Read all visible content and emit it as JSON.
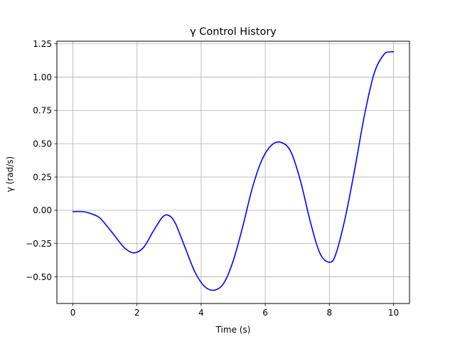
{
  "chart_data": {
    "type": "line",
    "title": "γ Control History",
    "xlabel": "Time (s)",
    "ylabel": "γ (rad/s)",
    "xlim": [
      -0.5,
      10.5
    ],
    "ylim": [
      -0.7,
      1.27
    ],
    "grid": true,
    "x_ticks": [
      0,
      2,
      4,
      6,
      8,
      10
    ],
    "x_tick_labels": [
      "0",
      "2",
      "4",
      "6",
      "8",
      "10"
    ],
    "y_ticks": [
      -0.5,
      -0.25,
      0.0,
      0.25,
      0.5,
      0.75,
      1.0,
      1.25
    ],
    "y_tick_labels": [
      "−0.50",
      "−0.25",
      "0.00",
      "0.25",
      "0.50",
      "0.75",
      "1.00",
      "1.25"
    ],
    "line_color": "#0000ff",
    "series": [
      {
        "x": [
          0,
          0.3,
          0.5,
          0.8,
          1.0,
          1.3,
          1.6,
          1.9,
          2.2,
          2.5,
          2.8,
          3.0,
          3.2,
          3.5,
          3.8,
          4.1,
          4.4,
          4.7,
          5.0,
          5.3,
          5.6,
          5.9,
          6.2,
          6.5,
          6.8,
          7.1,
          7.4,
          7.7,
          8.0,
          8.2,
          8.5,
          8.8,
          9.1,
          9.4,
          9.7,
          9.9,
          10.0
        ],
        "y": [
          -0.01,
          -0.01,
          -0.02,
          -0.05,
          -0.1,
          -0.19,
          -0.28,
          -0.32,
          -0.28,
          -0.16,
          -0.05,
          -0.04,
          -0.1,
          -0.28,
          -0.46,
          -0.57,
          -0.6,
          -0.55,
          -0.38,
          -0.12,
          0.17,
          0.38,
          0.49,
          0.51,
          0.44,
          0.22,
          -0.08,
          -0.32,
          -0.39,
          -0.33,
          -0.05,
          0.32,
          0.72,
          1.03,
          1.17,
          1.19,
          1.19
        ]
      }
    ]
  }
}
